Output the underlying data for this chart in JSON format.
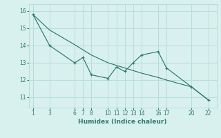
{
  "line1_x": [
    1,
    3,
    6,
    7,
    8,
    10,
    11,
    12,
    13,
    14,
    16,
    17,
    20,
    22
  ],
  "line1_y": [
    15.8,
    14.0,
    13.0,
    13.3,
    12.3,
    12.1,
    12.75,
    12.5,
    13.0,
    13.45,
    13.65,
    12.7,
    11.6,
    10.85
  ],
  "line2_x": [
    1,
    3,
    6,
    7,
    8,
    10,
    11,
    12,
    13,
    14,
    16,
    17,
    20,
    22
  ],
  "line2_y": [
    15.8,
    14.9,
    14.05,
    13.75,
    13.45,
    13.0,
    12.85,
    12.7,
    12.55,
    12.4,
    12.15,
    12.0,
    11.6,
    10.85
  ],
  "color": "#2d7a68",
  "bg_color": "#d8f0ee",
  "grid_color": "#b8ddd9",
  "xlabel": "Humidex (Indice chaleur)",
  "xticks": [
    1,
    3,
    6,
    7,
    8,
    10,
    11,
    12,
    13,
    14,
    16,
    17,
    20,
    22
  ],
  "yticks": [
    11,
    12,
    13,
    14,
    15,
    16
  ],
  "ylim": [
    10.4,
    16.4
  ],
  "xlim": [
    0.5,
    23.0
  ]
}
